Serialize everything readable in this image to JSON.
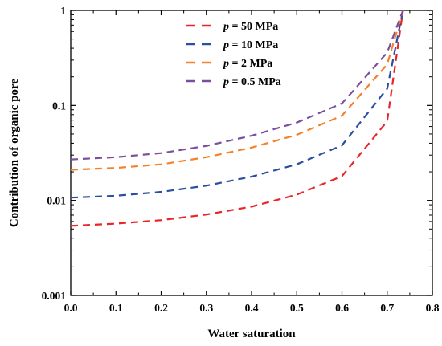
{
  "chart_data": {
    "type": "line",
    "xlabel": "Water saturation",
    "ylabel": "Contribution of organic pore",
    "xlim": [
      0,
      0.8
    ],
    "ylim": [
      0.001,
      1
    ],
    "y_scale": "log",
    "grid": false,
    "legend_position": "top-center",
    "x_ticks": [
      "0.0",
      "0.1",
      "0.2",
      "0.3",
      "0.4",
      "0.5",
      "0.6",
      "0.7",
      "0.8"
    ],
    "y_ticks": [
      "0.001",
      "0.01",
      "0.1",
      "1"
    ],
    "series": [
      {
        "name": "p = 50  MPa",
        "legend_prefix": "p",
        "legend_rest": " = 50  MPa",
        "color": "#e8262a",
        "x": [
          0,
          0.1,
          0.2,
          0.3,
          0.4,
          0.5,
          0.6,
          0.7,
          0.735
        ],
        "y": [
          0.0054,
          0.0057,
          0.0062,
          0.0071,
          0.0086,
          0.0115,
          0.018,
          0.068,
          1.0
        ]
      },
      {
        "name": "p = 10  MPa",
        "legend_prefix": "p",
        "legend_rest": " = 10  MPa",
        "color": "#2a4f9e",
        "x": [
          0,
          0.1,
          0.2,
          0.3,
          0.4,
          0.5,
          0.6,
          0.7,
          0.735
        ],
        "y": [
          0.0107,
          0.0112,
          0.0123,
          0.0143,
          0.0178,
          0.024,
          0.038,
          0.15,
          1.0
        ]
      },
      {
        "name": "p =  2   MPa",
        "legend_prefix": "p",
        "legend_rest": " =  2   MPa",
        "color": "#f5822a",
        "x": [
          0,
          0.1,
          0.2,
          0.3,
          0.4,
          0.5,
          0.6,
          0.7,
          0.735
        ],
        "y": [
          0.021,
          0.022,
          0.024,
          0.0285,
          0.036,
          0.049,
          0.078,
          0.27,
          1.0
        ]
      },
      {
        "name": "p = 0.5 MPa",
        "legend_prefix": "p",
        "legend_rest": " = 0.5 MPa",
        "color": "#7b4f9e",
        "x": [
          0,
          0.1,
          0.2,
          0.3,
          0.4,
          0.5,
          0.6,
          0.7,
          0.735
        ],
        "y": [
          0.027,
          0.0285,
          0.0315,
          0.0375,
          0.048,
          0.066,
          0.105,
          0.36,
          1.0
        ]
      }
    ]
  }
}
